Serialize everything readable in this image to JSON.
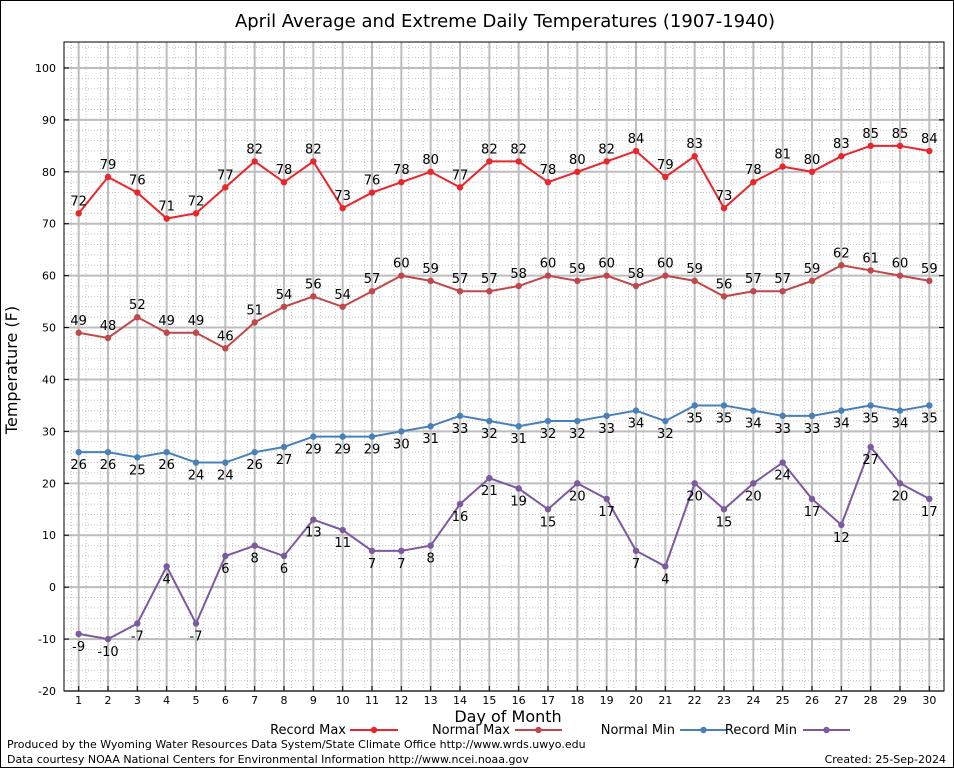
{
  "chart_data": {
    "type": "line",
    "title": "April Average and Extreme Daily Temperatures (1907-1940)",
    "xlabel": "Day of Month",
    "ylabel": "Temperature (F)",
    "ylim": [
      -20,
      105
    ],
    "yticks": [
      -20,
      -10,
      0,
      10,
      20,
      30,
      40,
      50,
      60,
      70,
      80,
      90,
      100
    ],
    "x": [
      1,
      2,
      3,
      4,
      5,
      6,
      7,
      8,
      9,
      10,
      11,
      12,
      13,
      14,
      15,
      16,
      17,
      18,
      19,
      20,
      21,
      22,
      23,
      24,
      25,
      26,
      27,
      28,
      29,
      30
    ],
    "grid": true,
    "legend_placement": "bottom",
    "series": [
      {
        "name": "Record Max",
        "color": "#e8262b",
        "values": [
          72,
          79,
          76,
          71,
          72,
          77,
          82,
          78,
          82,
          73,
          76,
          78,
          80,
          77,
          82,
          82,
          78,
          80,
          82,
          84,
          79,
          83,
          73,
          78,
          81,
          80,
          83,
          85,
          85,
          84
        ],
        "label_side": "above"
      },
      {
        "name": "Normal Max",
        "color": "#c0474a",
        "values": [
          49,
          48,
          52,
          49,
          49,
          46,
          51,
          54,
          56,
          54,
          57,
          60,
          59,
          57,
          57,
          58,
          60,
          59,
          60,
          58,
          60,
          59,
          56,
          57,
          57,
          59,
          62,
          61,
          60,
          59
        ],
        "label_side": "above"
      },
      {
        "name": "Normal Min",
        "color": "#4a80b8",
        "values": [
          26,
          26,
          25,
          26,
          24,
          24,
          26,
          27,
          29,
          29,
          29,
          30,
          31,
          33,
          32,
          31,
          32,
          32,
          33,
          34,
          32,
          35,
          35,
          34,
          33,
          33,
          34,
          35,
          34,
          35
        ],
        "label_side": "below"
      },
      {
        "name": "Record Min",
        "color": "#7b5aa0",
        "values": [
          -9,
          -10,
          -7,
          4,
          -7,
          6,
          8,
          6,
          13,
          11,
          7,
          7,
          8,
          16,
          21,
          19,
          15,
          20,
          17,
          7,
          4,
          20,
          15,
          20,
          24,
          17,
          12,
          27,
          20,
          17
        ],
        "label_side": "below"
      }
    ]
  },
  "footer": {
    "produced_by": "Produced by the Wyoming Water Resources Data System/State Climate Office http://www.wrds.uwyo.edu",
    "courtesy": "Data courtesy NOAA National Centers for Environmental Information http://www.ncei.noaa.gov",
    "created": "Created:  25-Sep-2024"
  }
}
